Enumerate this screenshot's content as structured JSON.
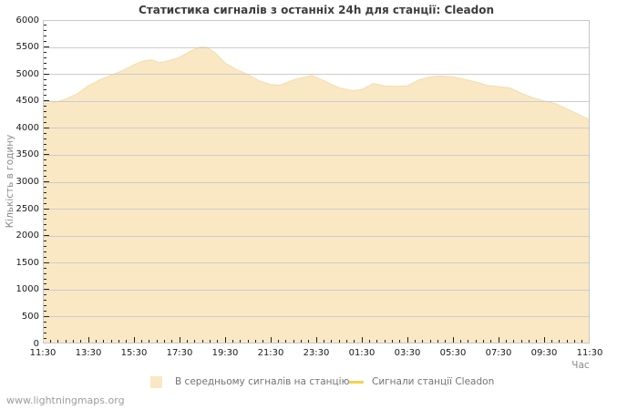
{
  "title": "Статистика сигналів з останніх 24h для станції: Cleadon",
  "watermark": "www.lightningmaps.org",
  "chart_data": {
    "type": "area",
    "title": "Статистика сигналів з останніх 24h для станції: Cleadon",
    "xlabel": "Час",
    "ylabel": "Кількість в годину",
    "ylim": [
      0,
      6000
    ],
    "y_tick_step": 500,
    "y_minor_tick_step": 100,
    "x_hours_span": 24,
    "x_tick_labels": [
      "11:30",
      "13:30",
      "15:30",
      "17:30",
      "19:30",
      "21:30",
      "23:30",
      "01:30",
      "03:30",
      "05:30",
      "07:30",
      "09:30",
      "11:30"
    ],
    "x_minor_tick_minutes": 20,
    "grid": "horizontal",
    "legend_position": "bottom",
    "colors": {
      "area_fill": "#FAE8C5",
      "area_edge": "#F3DCAC",
      "station_line": "#EFD34F",
      "gridline": "#CCCCCC",
      "frame": "#C6C6C6",
      "tick": "#222222"
    },
    "series": [
      {
        "name": "В середньому сигналів на станцію",
        "type": "area",
        "color": "#FAE8C5",
        "points_hours_value": [
          [
            0,
            4450
          ],
          [
            0.5,
            4470
          ],
          [
            1,
            4530
          ],
          [
            1.5,
            4630
          ],
          [
            2,
            4780
          ],
          [
            2.5,
            4890
          ],
          [
            3,
            4975
          ],
          [
            3.5,
            5060
          ],
          [
            4,
            5170
          ],
          [
            4.4,
            5240
          ],
          [
            4.8,
            5260
          ],
          [
            5.1,
            5210
          ],
          [
            5.5,
            5245
          ],
          [
            6,
            5305
          ],
          [
            6.5,
            5430
          ],
          [
            6.9,
            5500
          ],
          [
            7.2,
            5495
          ],
          [
            7.6,
            5380
          ],
          [
            8,
            5200
          ],
          [
            8.5,
            5080
          ],
          [
            9,
            4990
          ],
          [
            9.5,
            4870
          ],
          [
            10,
            4805
          ],
          [
            10.4,
            4790
          ],
          [
            11,
            4890
          ],
          [
            11.8,
            4975
          ],
          [
            12.3,
            4880
          ],
          [
            13,
            4740
          ],
          [
            13.6,
            4690
          ],
          [
            14,
            4710
          ],
          [
            14.5,
            4820
          ],
          [
            15,
            4780
          ],
          [
            15.5,
            4770
          ],
          [
            16,
            4780
          ],
          [
            16.5,
            4890
          ],
          [
            17,
            4945
          ],
          [
            17.5,
            4960
          ],
          [
            18,
            4945
          ],
          [
            18.5,
            4900
          ],
          [
            19,
            4850
          ],
          [
            19.5,
            4790
          ],
          [
            20,
            4765
          ],
          [
            20.5,
            4740
          ],
          [
            21,
            4640
          ],
          [
            21.5,
            4560
          ],
          [
            22,
            4500
          ],
          [
            22.5,
            4450
          ],
          [
            23,
            4350
          ],
          [
            23.5,
            4250
          ],
          [
            24,
            4150
          ]
        ]
      },
      {
        "name": "Сигнали станції Cleadon",
        "type": "line",
        "color": "#EFD34F",
        "points_hours_value": []
      }
    ]
  }
}
